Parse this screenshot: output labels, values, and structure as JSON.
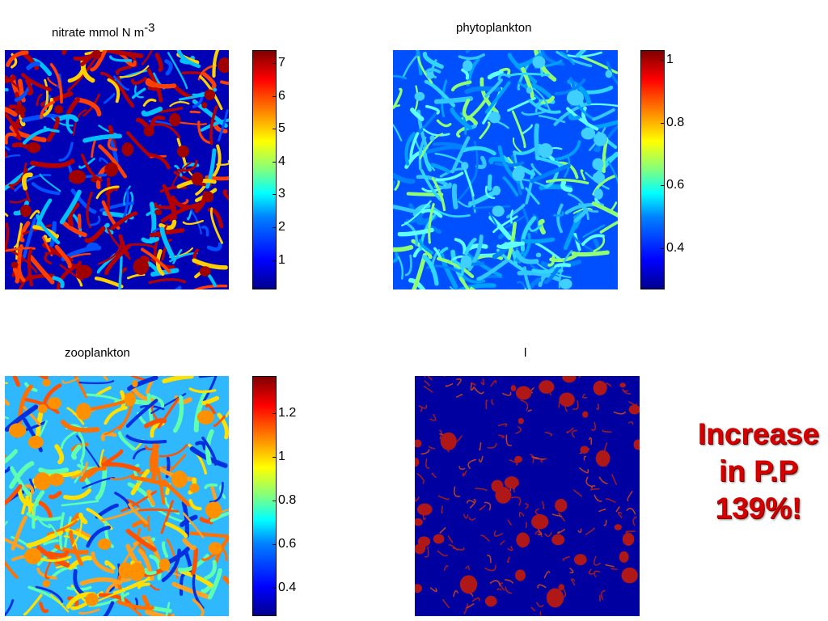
{
  "chart_data": [
    {
      "type": "heatmap",
      "title": "nitrate mmol N m",
      "title_superscript": "-3",
      "colormap": "jet",
      "colorbar_ticks": [
        1,
        2,
        3,
        4,
        5,
        6,
        7
      ],
      "colorbar_tick_labels": [
        "1",
        "2",
        "3",
        "4",
        "5",
        "6",
        "7"
      ],
      "clim": [
        0.1,
        7.4
      ],
      "field_description_colors": {
        "background": "#0000b4",
        "patches": "#b40000"
      }
    },
    {
      "type": "heatmap",
      "title": "phytoplankton",
      "colormap": "jet",
      "colorbar_ticks": [
        0.4,
        0.6,
        0.8,
        1
      ],
      "colorbar_tick_labels": [
        "0.4",
        "0.6",
        "0.8",
        "1"
      ],
      "clim": [
        0.27,
        1.03
      ],
      "field_description_colors": {
        "background": "#0050ff",
        "patches": "#30c8ff"
      }
    },
    {
      "type": "heatmap",
      "title": "zooplankton",
      "colormap": "jet",
      "colorbar_ticks": [
        0.4,
        0.6,
        0.8,
        1,
        1.2
      ],
      "colorbar_tick_labels": [
        "0.4",
        "0.6",
        "0.8",
        "1",
        "1.2"
      ],
      "clim": [
        0.27,
        1.37
      ],
      "field_description_colors": {
        "background": "#30b8ff",
        "patches": "#ffa020"
      }
    },
    {
      "type": "heatmap",
      "title": "l",
      "colormap": "binary",
      "colorbar_ticks": [],
      "field_description_colors": {
        "background": "#0000a0",
        "patches": "#b01818"
      }
    }
  ],
  "callout": {
    "line1": "Increase",
    "line2": "in P.P",
    "line3": "139%!",
    "color": "#d40000"
  }
}
